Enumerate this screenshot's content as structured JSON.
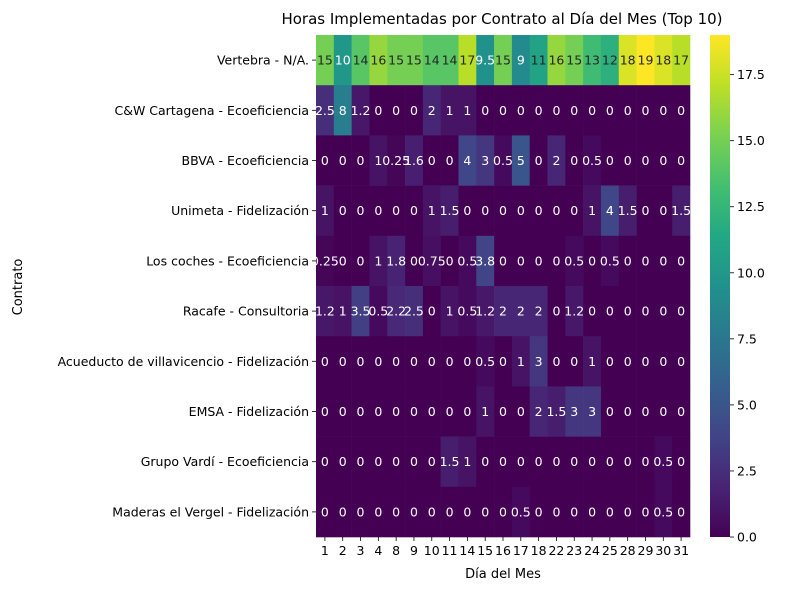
{
  "chart_data": {
    "type": "heatmap",
    "title": "Horas Implementadas por Contrato al Día del Mes (Top 10)",
    "xlabel": "Día del Mes",
    "ylabel": "Contrato",
    "x": [
      "1",
      "2",
      "3",
      "4",
      "8",
      "9",
      "10",
      "11",
      "14",
      "15",
      "16",
      "17",
      "18",
      "22",
      "23",
      "24",
      "25",
      "28",
      "29",
      "30",
      "31"
    ],
    "y": [
      "Vertebra - N/A.",
      "C&W Cartagena - Ecoeficiencia",
      "BBVA - Ecoeficiencia",
      "Unimeta - Fidelización",
      "Los coches - Ecoeficiencia",
      "Racafe - Consultoria",
      "Acueducto de villavicencio - Fidelización",
      "EMSA - Fidelización",
      "Grupo Vardí - Ecoeficiencia",
      "Maderas el Vergel - Fidelización"
    ],
    "values": [
      [
        15,
        10,
        14,
        16,
        15,
        15,
        14,
        14,
        17,
        9.5,
        15,
        9,
        11,
        16,
        15,
        13,
        12,
        18,
        19,
        18,
        17
      ],
      [
        2.5,
        8,
        1.2,
        0,
        0,
        0,
        2,
        1,
        1,
        0,
        0,
        0,
        0,
        0,
        0,
        0,
        0,
        0,
        0,
        0,
        0
      ],
      [
        0,
        0,
        0,
        1,
        0.25,
        1.6,
        0,
        0,
        4,
        3,
        0.5,
        5,
        0,
        2,
        0,
        0.5,
        0,
        0,
        0,
        0,
        0
      ],
      [
        1,
        0,
        0,
        0,
        0,
        0,
        1,
        1.5,
        0,
        0,
        0,
        0,
        0,
        0,
        0,
        1,
        4,
        1.5,
        0,
        0,
        1.5
      ],
      [
        0.25,
        0,
        0,
        1,
        1.8,
        0,
        0.75,
        0,
        0.5,
        3.8,
        0,
        0,
        0,
        0,
        0.5,
        0,
        0.5,
        0,
        0,
        0,
        0
      ],
      [
        1.2,
        1,
        3.5,
        0.5,
        2.2,
        2.5,
        0,
        1,
        0.5,
        1.2,
        2,
        2,
        2,
        0,
        1.2,
        0,
        0,
        0,
        0,
        0,
        0
      ],
      [
        0,
        0,
        0,
        0,
        0,
        0,
        0,
        0,
        0,
        0.5,
        0,
        1,
        3,
        0,
        0,
        1,
        0,
        0,
        0,
        0,
        0
      ],
      [
        0,
        0,
        0,
        0,
        0,
        0,
        0,
        0,
        0,
        1,
        0,
        0,
        2,
        1.5,
        3,
        3,
        0,
        0,
        0,
        0,
        0
      ],
      [
        0,
        0,
        0,
        0,
        0,
        0,
        0,
        1.5,
        1,
        0,
        0,
        0,
        0,
        0,
        0,
        0,
        0,
        0,
        0,
        0.5,
        0
      ],
      [
        0,
        0,
        0,
        0,
        0,
        0,
        0,
        0,
        0,
        0,
        0,
        0.5,
        0,
        0,
        0,
        0,
        0,
        0,
        0,
        0.5,
        0
      ]
    ],
    "annotations": [
      [
        "15",
        "10",
        "14",
        "16",
        "15",
        "15",
        "14",
        "14",
        "17",
        "9.5",
        "15",
        "9",
        "11",
        "16",
        "15",
        "13",
        "12",
        "18",
        "19",
        "18",
        "17"
      ],
      [
        "2.5",
        "8",
        "1.2",
        "0",
        "0",
        "0",
        "2",
        "1",
        "1",
        "0",
        "0",
        "0",
        "0",
        "0",
        "0",
        "0",
        "0",
        "0",
        "0",
        "0",
        "0"
      ],
      [
        "0",
        "0",
        "0",
        "1",
        "0.25",
        "1.6",
        "0",
        "0",
        "4",
        "3",
        "0.5",
        "5",
        "0",
        "2",
        "0",
        "0.5",
        "0",
        "0",
        "0",
        "0",
        "0"
      ],
      [
        "1",
        "0",
        "0",
        "0",
        "0",
        "0",
        "1",
        "1.5",
        "0",
        "0",
        "0",
        "0",
        "0",
        "0",
        "0",
        "1",
        "4",
        "1.5",
        "0",
        "0",
        "1.5"
      ],
      [
        "0.25",
        "0",
        "0",
        "1",
        "1.8",
        "0",
        "0.75",
        "0",
        "0.5",
        "3.8",
        "0",
        "0",
        "0",
        "0",
        "0.5",
        "0",
        "0.5",
        "0",
        "0",
        "0",
        "0"
      ],
      [
        "1.2",
        "1",
        "3.5",
        "0.5",
        "2.2",
        "2.5",
        "0",
        "1",
        "0.5",
        "1.2",
        "2",
        "2",
        "2",
        "0",
        "1.2",
        "0",
        "0",
        "0",
        "0",
        "0",
        "0"
      ],
      [
        "0",
        "0",
        "0",
        "0",
        "0",
        "0",
        "0",
        "0",
        "0",
        "0.5",
        "0",
        "1",
        "3",
        "0",
        "0",
        "1",
        "0",
        "0",
        "0",
        "0",
        "0"
      ],
      [
        "0",
        "0",
        "0",
        "0",
        "0",
        "0",
        "0",
        "0",
        "0",
        "1",
        "0",
        "0",
        "2",
        "1.5",
        "3",
        "3",
        "0",
        "0",
        "0",
        "0",
        "0"
      ],
      [
        "0",
        "0",
        "0",
        "0",
        "0",
        "0",
        "0",
        "1.5",
        "1",
        "0",
        "0",
        "0",
        "0",
        "0",
        "0",
        "0",
        "0",
        "0",
        "0",
        "0.5",
        "0"
      ],
      [
        "0",
        "0",
        "0",
        "0",
        "0",
        "0",
        "0",
        "0",
        "0",
        "0",
        "0",
        "0.5",
        "0",
        "0",
        "0",
        "0",
        "0",
        "0",
        "0",
        "0.5",
        "0"
      ]
    ],
    "colorbar": {
      "colormap": "viridis",
      "range": [
        0,
        19
      ],
      "ticks": [
        "0.0",
        "2.5",
        "5.0",
        "7.5",
        "10.0",
        "12.5",
        "15.0",
        "17.5"
      ],
      "tick_values": [
        0,
        2.5,
        5,
        7.5,
        10,
        12.5,
        15,
        17.5
      ]
    }
  }
}
